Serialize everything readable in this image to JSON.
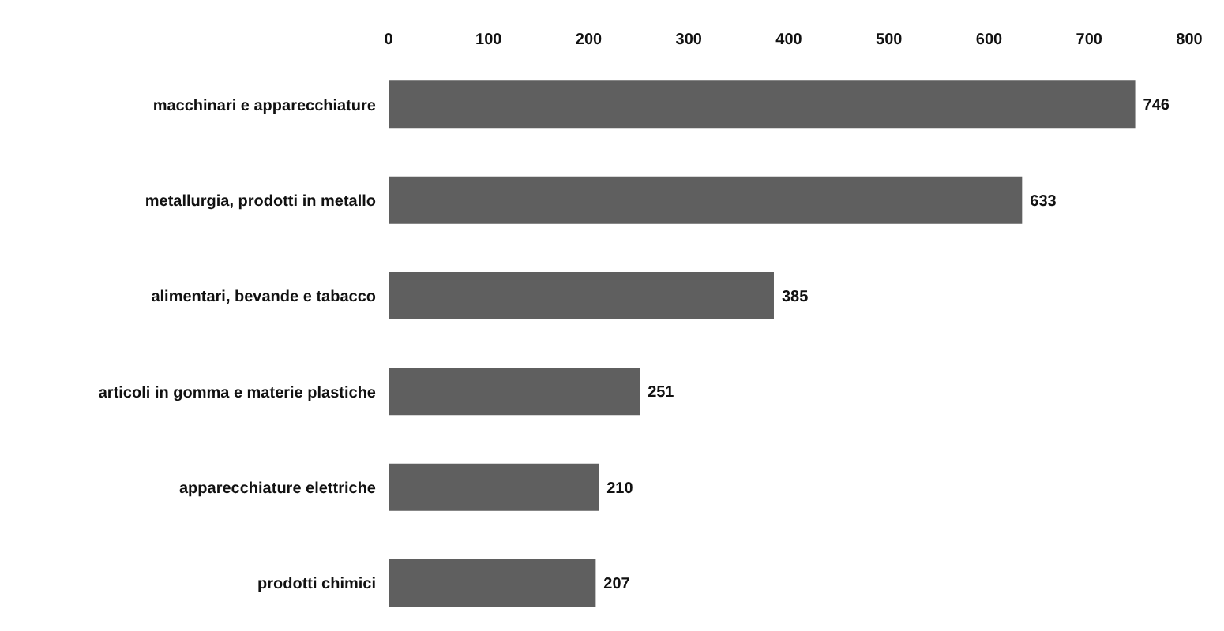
{
  "chart_data": {
    "type": "bar",
    "orientation": "horizontal",
    "categories": [
      "macchinari e apparecchiature",
      "metallurgia, prodotti in metallo",
      "alimentari, bevande e tabacco",
      "articoli in gomma e materie plastiche",
      "apparecchiature elettriche",
      "prodotti chimici"
    ],
    "values": [
      746,
      633,
      385,
      251,
      210,
      207
    ],
    "color": "#5f5f5f",
    "xlim": [
      0,
      800
    ],
    "xticks": [
      0,
      100,
      200,
      300,
      400,
      500,
      600,
      700,
      800
    ],
    "grid": false,
    "data_labels": true
  }
}
